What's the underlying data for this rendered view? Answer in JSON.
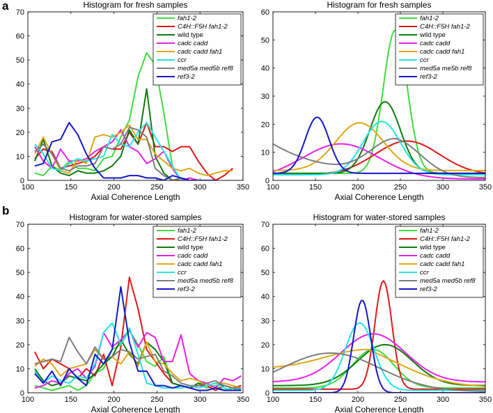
{
  "panel_letters": [
    "a",
    "b"
  ],
  "colors": {
    "fah1-2": "#3ddc3d",
    "C4H::F5H fah1-2": "#e01616",
    "wild type": "#0e7a0e",
    "cadc cadd": "#e81fe8",
    "cadc cadd fah1": "#e0a614",
    "ccr": "#22e5e5",
    "med5a med5b ref8": "#7d7d7d",
    "ref3-2": "#1616c8"
  },
  "chart_data": [
    {
      "id": "a-hist",
      "type": "line",
      "title": "Histogram for fresh samples",
      "xlabel": "Axial Coherence Length",
      "ylabel": "",
      "xlim": [
        100,
        350
      ],
      "ylim": [
        0,
        70
      ],
      "xticks": [
        100,
        150,
        200,
        250,
        300,
        350
      ],
      "yticks": [
        0,
        10,
        20,
        30,
        40,
        50,
        60,
        70
      ],
      "legend": [
        "fah1-2",
        "C4H::F5H fah1-2",
        "wild type",
        "cadc cadd",
        "cadc cadd fah1",
        "ccr",
        "med5a med5b ref8",
        "ref3-2"
      ],
      "series": [
        {
          "name": "fah1-2",
          "x": [
            108,
            118,
            128,
            138,
            148,
            158,
            168,
            178,
            188,
            198,
            208,
            218,
            228,
            238,
            248,
            258,
            268,
            278
          ],
          "values": [
            3,
            2,
            6,
            4,
            8,
            5,
            5,
            4,
            9,
            10,
            18,
            25,
            43,
            53,
            48,
            28,
            6,
            0
          ]
        },
        {
          "name": "C4H::F5H fah1-2",
          "x": [
            108,
            118,
            128,
            138,
            148,
            158,
            168,
            178,
            188,
            198,
            208,
            218,
            228,
            238,
            248,
            258,
            268,
            278,
            288,
            298,
            308,
            318,
            328,
            338
          ],
          "values": [
            9,
            13,
            12,
            5,
            6,
            7,
            8,
            10,
            14,
            13,
            13,
            20,
            15,
            24,
            14,
            14,
            12,
            14,
            14,
            8,
            3,
            0,
            2,
            5
          ]
        },
        {
          "name": "wild type",
          "x": [
            108,
            118,
            128,
            138,
            148,
            158,
            168,
            178,
            188,
            198,
            208,
            218,
            228,
            238,
            248,
            258,
            268,
            278
          ],
          "values": [
            8,
            17,
            6,
            3,
            2,
            4,
            3,
            3,
            4,
            6,
            10,
            21,
            15,
            38,
            10,
            3,
            0,
            0
          ]
        },
        {
          "name": "cadc cadd",
          "x": [
            108,
            118,
            128,
            138,
            148,
            158,
            168,
            178,
            188,
            198,
            208,
            218,
            228,
            238,
            248,
            258,
            268,
            278,
            288,
            298
          ],
          "values": [
            14,
            8,
            5,
            13,
            8,
            8,
            9,
            12,
            14,
            16,
            21,
            14,
            12,
            7,
            9,
            12,
            5,
            0,
            1,
            0
          ]
        },
        {
          "name": "cadc cadd fah1",
          "x": [
            108,
            118,
            128,
            138,
            148,
            158,
            168,
            178,
            188,
            198,
            208,
            218,
            228,
            238,
            248,
            258,
            268,
            278,
            288,
            298,
            308,
            318,
            328,
            338
          ],
          "values": [
            11,
            18,
            11,
            4,
            3,
            9,
            7,
            18,
            19,
            18,
            20,
            23,
            17,
            17,
            11,
            8,
            5,
            4,
            5,
            3,
            2,
            3,
            4,
            4
          ]
        },
        {
          "name": "ccr",
          "x": [
            108,
            118,
            128,
            138,
            148,
            158,
            168,
            178,
            188,
            198,
            208,
            218,
            228,
            238,
            248,
            258,
            268,
            278
          ],
          "values": [
            15,
            11,
            5,
            4,
            7,
            9,
            8,
            9,
            10,
            19,
            15,
            14,
            20,
            24,
            18,
            12,
            6,
            0
          ]
        },
        {
          "name": "med5a med5b ref8",
          "x": [
            108,
            118,
            128,
            138,
            148,
            158,
            168,
            178,
            188,
            198,
            208,
            218,
            228,
            238,
            248,
            258,
            268,
            278,
            288
          ],
          "values": [
            12,
            15,
            11,
            5,
            4,
            6,
            6,
            7,
            14,
            13,
            15,
            22,
            21,
            18,
            5,
            2,
            0,
            1,
            0
          ]
        },
        {
          "name": "ref3-2",
          "x": [
            108,
            118,
            128,
            138,
            148,
            158,
            168,
            178,
            188,
            198,
            208,
            218,
            228,
            238,
            248,
            258,
            268,
            278,
            288,
            298,
            308,
            318
          ],
          "values": [
            6,
            7,
            16,
            17,
            24,
            19,
            11,
            5,
            1,
            1,
            1,
            2,
            2,
            1,
            1,
            0,
            2,
            1,
            0,
            0,
            0,
            0
          ]
        }
      ]
    },
    {
      "id": "a-fit",
      "type": "line",
      "title": "Histogram for fresh samples",
      "xlabel": "Axial Coherence Length",
      "ylabel": "",
      "xlim": [
        100,
        350
      ],
      "ylim": [
        0,
        60
      ],
      "xticks": [
        100,
        150,
        200,
        250,
        300,
        350
      ],
      "yticks": [
        0,
        10,
        20,
        30,
        40,
        50,
        60
      ],
      "legend": [
        "fah1-2",
        "C4H::F5H fah1-2",
        "wild type",
        "cadc cadd",
        "cadc cadd fah1",
        "ccr",
        "med5a me5b ref8",
        "ref3-2"
      ],
      "fits": [
        {
          "name": "fah1-2",
          "mu": 244,
          "sigma": 14,
          "peak": 51,
          "base": 2.5
        },
        {
          "name": "C4H::F5H fah1-2",
          "mu": 258,
          "sigma": 38,
          "peak": 12,
          "base": 2
        },
        {
          "name": "wild type",
          "mu": 232,
          "sigma": 18,
          "peak": 25.5,
          "base": 2.5
        },
        {
          "name": "cadc cadd",
          "mu": 180,
          "sigma": 45,
          "peak": 12.5,
          "base": 0.5
        },
        {
          "name": "cadc cadd fah1",
          "mu": 202,
          "sigma": 28,
          "peak": 17,
          "base": 3.5
        },
        {
          "name": "ccr",
          "mu": 228,
          "sigma": 22,
          "peak": 19,
          "base": 2
        },
        {
          "name": "med5a me5b ref8",
          "mu": 245,
          "sigma": 30,
          "peak": 12.5,
          "base": 1,
          "decay": 0.015,
          "start": 13
        },
        {
          "name": "ref3-2",
          "mu": 152,
          "sigma": 14,
          "peak": 20,
          "base": 2.5
        }
      ]
    },
    {
      "id": "b-hist",
      "type": "line",
      "title": "Histogram for water-stored samples",
      "xlabel": "Axial Coherence Length",
      "ylabel": "",
      "xlim": [
        100,
        350
      ],
      "ylim": [
        0,
        70
      ],
      "xticks": [
        100,
        150,
        200,
        250,
        300,
        350
      ],
      "yticks": [
        0,
        10,
        20,
        30,
        40,
        50,
        60,
        70
      ],
      "legend": [
        "fah1-2",
        "C4H::F5H fah1-2",
        "wild type",
        "cadc cadd",
        "cadc cadd fah1",
        "ccr",
        "med5a med5b ref8",
        "ref3-2"
      ],
      "series": [
        {
          "name": "fah1-2",
          "x": [
            108,
            118,
            128,
            138,
            148,
            158,
            168,
            178,
            188,
            198,
            208,
            218,
            228,
            238,
            248,
            258,
            268,
            278,
            288,
            298,
            308,
            318,
            328,
            338,
            348
          ],
          "values": [
            3,
            2,
            1,
            2,
            3,
            1,
            3,
            8,
            10,
            18,
            20,
            26,
            20,
            13,
            11,
            15,
            4,
            3,
            2,
            4,
            2,
            3,
            1,
            2,
            2
          ]
        },
        {
          "name": "C4H::F5H fah1-2",
          "x": [
            108,
            118,
            128,
            138,
            148,
            158,
            168,
            178,
            188,
            198,
            208,
            218,
            228,
            238,
            248,
            258,
            268,
            278,
            288,
            298,
            308,
            318,
            328,
            338,
            348
          ],
          "values": [
            17,
            10,
            14,
            12,
            10,
            6,
            10,
            7,
            16,
            3,
            19,
            48,
            35,
            18,
            13,
            8,
            4,
            3,
            2,
            3,
            3,
            1,
            3,
            2,
            3
          ]
        },
        {
          "name": "wild type",
          "x": [
            108,
            118,
            128,
            138,
            148,
            158,
            168,
            178,
            188,
            198,
            208,
            218,
            228,
            238,
            248,
            258,
            268,
            278,
            288,
            298,
            308,
            318,
            328,
            338,
            348
          ],
          "values": [
            10,
            5,
            3,
            4,
            7,
            6,
            5,
            8,
            12,
            15,
            22,
            16,
            12,
            21,
            18,
            13,
            4,
            3,
            2,
            4,
            3,
            4,
            3,
            2,
            1
          ]
        },
        {
          "name": "cadc cadd",
          "x": [
            108,
            118,
            128,
            138,
            148,
            158,
            168,
            178,
            188,
            198,
            208,
            218,
            228,
            238,
            248,
            258,
            268,
            278,
            288,
            298,
            308,
            318,
            328,
            338,
            348
          ],
          "values": [
            2,
            3,
            5,
            4,
            8,
            10,
            6,
            11,
            25,
            19,
            22,
            26,
            19,
            25,
            23,
            13,
            13,
            24,
            8,
            5,
            4,
            2,
            6,
            5,
            7
          ]
        },
        {
          "name": "cadc cadd fah1",
          "x": [
            108,
            118,
            128,
            138,
            148,
            158,
            168,
            178,
            188,
            198,
            208,
            218,
            228,
            238,
            248,
            258,
            268,
            278,
            288,
            298,
            308,
            318,
            328,
            338,
            348
          ],
          "values": [
            11,
            14,
            12,
            7,
            10,
            11,
            12,
            18,
            14,
            15,
            12,
            17,
            11,
            21,
            13,
            12,
            8,
            5,
            6,
            5,
            3,
            4,
            4,
            3,
            2
          ]
        },
        {
          "name": "ccr",
          "x": [
            108,
            118,
            128,
            138,
            148,
            158,
            168,
            178,
            188,
            198,
            208,
            218,
            228,
            238,
            248,
            258,
            268,
            278,
            288,
            298,
            308,
            318,
            328,
            338,
            348
          ],
          "values": [
            9,
            4,
            7,
            5,
            4,
            7,
            6,
            12,
            25,
            29,
            20,
            27,
            16,
            4,
            3,
            2,
            2,
            2,
            3,
            2,
            3,
            4,
            2,
            1,
            2
          ]
        },
        {
          "name": "med5a med5b ref8",
          "x": [
            108,
            118,
            128,
            138,
            148,
            158,
            168,
            178,
            188,
            198,
            208,
            218,
            228,
            238,
            248,
            258,
            268,
            278,
            288,
            298,
            308,
            318,
            328,
            338,
            348
          ],
          "values": [
            12,
            13,
            14,
            13,
            23,
            17,
            12,
            19,
            14,
            15,
            18,
            17,
            14,
            15,
            16,
            9,
            7,
            4,
            3,
            3,
            4,
            5,
            3,
            2,
            2
          ]
        },
        {
          "name": "ref3-2",
          "x": [
            108,
            118,
            128,
            138,
            148,
            158,
            168,
            178,
            188,
            198,
            208,
            218,
            228,
            238,
            248,
            258,
            268,
            278,
            288,
            298,
            308,
            318,
            328,
            338,
            348
          ],
          "values": [
            8,
            4,
            9,
            3,
            10,
            6,
            3,
            16,
            12,
            18,
            44,
            21,
            9,
            9,
            3,
            3,
            2,
            3,
            2,
            1,
            1,
            2,
            1,
            1,
            1
          ]
        }
      ]
    },
    {
      "id": "b-fit",
      "type": "line",
      "title": "Histogram for water-stored samples",
      "xlabel": "Axial Coherence Length",
      "ylabel": "",
      "xlim": [
        100,
        350
      ],
      "ylim": [
        0,
        70
      ],
      "xticks": [
        100,
        150,
        200,
        250,
        300,
        350
      ],
      "yticks": [
        0,
        10,
        20,
        30,
        40,
        50,
        60,
        70
      ],
      "legend": [
        "fah1-2",
        "C4H::F5H fah1-2",
        "wild type",
        "cadc cadd",
        "cadc cadd fah1",
        "ccr",
        "med5a med5b ref8",
        "ref3-2"
      ],
      "fits": [
        {
          "name": "fah1-2",
          "mu": 218,
          "sigma": 24,
          "peak": 16,
          "base": 2
        },
        {
          "name": "C4H::F5H fah1-2",
          "mu": 230,
          "sigma": 10,
          "peak": 45,
          "base": 1.5
        },
        {
          "name": "wild type",
          "mu": 232,
          "sigma": 32,
          "peak": 17,
          "base": 3
        },
        {
          "name": "cadc cadd",
          "mu": 218,
          "sigma": 38,
          "peak": 20,
          "base": 4.5
        },
        {
          "name": "cadc cadd fah1",
          "mu": 212,
          "sigma": 50,
          "peak": 8,
          "base": 10,
          "decay": 0.02
        },
        {
          "name": "ccr",
          "mu": 202,
          "sigma": 17,
          "peak": 28,
          "base": 1
        },
        {
          "name": "med5a med5b ref8",
          "mu": 168,
          "sigma": 58,
          "peak": 16,
          "base": 0.5
        },
        {
          "name": "ref3-2",
          "mu": 205,
          "sigma": 10,
          "peak": 38.5,
          "base": 0
        }
      ]
    }
  ]
}
